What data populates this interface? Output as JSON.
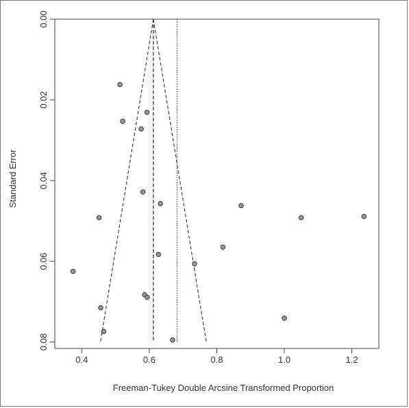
{
  "chart_data": {
    "type": "scatter",
    "title": "",
    "xlabel": "Freeman-Tukey Double Arcsine Transformed Proportion",
    "ylabel": "Standard Error",
    "xlim": [
      0.32,
      1.28
    ],
    "ylim": [
      0.0,
      0.0816
    ],
    "y_reversed": true,
    "x_ticks": [
      0.4,
      0.6,
      0.8,
      1.0,
      1.2
    ],
    "x_tick_labels": [
      "0.4",
      "0.6",
      "0.8",
      "1.0",
      "1.2"
    ],
    "y_ticks": [
      0.0,
      0.02,
      0.04,
      0.06,
      0.08
    ],
    "y_tick_labels": [
      "0.00",
      "0.02",
      "0.04",
      "0.06",
      "0.08"
    ],
    "pooled_estimate": 0.612,
    "reference_line": 0.682,
    "funnel_se_max": 0.08,
    "points": [
      {
        "x": 0.513,
        "y": 0.0162
      },
      {
        "x": 0.521,
        "y": 0.0253
      },
      {
        "x": 0.593,
        "y": 0.0231
      },
      {
        "x": 0.576,
        "y": 0.0272
      },
      {
        "x": 0.581,
        "y": 0.0428
      },
      {
        "x": 0.633,
        "y": 0.0457
      },
      {
        "x": 0.451,
        "y": 0.0492
      },
      {
        "x": 0.627,
        "y": 0.0583
      },
      {
        "x": 0.374,
        "y": 0.0625
      },
      {
        "x": 0.734,
        "y": 0.0606
      },
      {
        "x": 0.818,
        "y": 0.0565
      },
      {
        "x": 0.872,
        "y": 0.0462
      },
      {
        "x": 1.05,
        "y": 0.0492
      },
      {
        "x": 1.236,
        "y": 0.0489
      },
      {
        "x": 0.586,
        "y": 0.0683
      },
      {
        "x": 0.594,
        "y": 0.0689
      },
      {
        "x": 0.456,
        "y": 0.0715
      },
      {
        "x": 0.465,
        "y": 0.0774
      },
      {
        "x": 1.0,
        "y": 0.0741
      },
      {
        "x": 0.669,
        "y": 0.0795
      }
    ],
    "grid": false,
    "colors": {
      "point_fill": "#9a9a9a",
      "point_stroke": "#333333",
      "line": "#333333"
    }
  }
}
